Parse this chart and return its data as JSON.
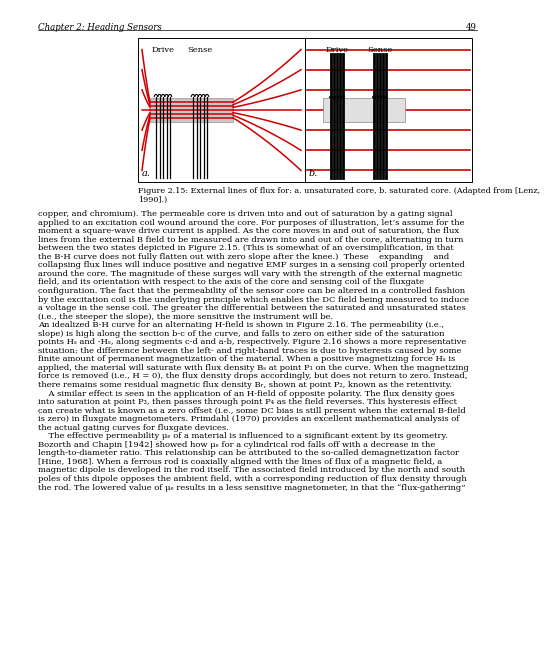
{
  "page_title": "Chapter 2: Heading Sensors",
  "page_number": "49",
  "fig_caption_line1": "Figure 2.15: External lines of flux for: a. unsaturated core, b. saturated core. (Adapted from [Lenz,",
  "fig_caption_line2": "1990].)",
  "label_a": "a.",
  "label_b": "b.",
  "drive_label": "Drive",
  "sense_label": "Sense",
  "body_lines": [
    "copper, and chromium). The permeable core is driven into and out of saturation by a gating signal",
    "applied to an excitation coil wound around the core. For purposes of illustration, let’s assume for the",
    "moment a square-wave drive current is applied. As the core moves in and out of saturation, the flux",
    "lines from the external B field to be measured are drawn into and out of the core, alternating in turn",
    "between the two states depicted in Figure 2.15. (This is somewhat of an oversimplification, in that",
    "the B-H curve does not fully flatten out with zero slope after the knee.)  These    expanding    and",
    "collapsing flux lines will induce positive and negative EMF surges in a sensing coil properly oriented",
    "around the core. The magnitude of these surges will vary with the strength of the external magnetic",
    "field, and its orientation with respect to the axis of the core and sensing coil of the fluxgate",
    "configuration. The fact that the permeability of the sensor core can be altered in a controlled fashion",
    "by the excitation coil is the underlying principle which enables the DC field being measured to induce",
    "a voltage in the sense coil. The greater the differential between the saturated and unsaturated states",
    "(i.e., the steeper the slope), the more sensitive the instrument will be.",
    "An idealized B-H curve for an alternating H-field is shown in Figure 2.16. The permeability (i.e.,",
    "slope) is high along the section b-c of the curve, and falls to zero on either side of the saturation",
    "points Hₛ and -Hₛ, along segments c-d and a-b, respectively. Figure 2.16 shows a more representative",
    "situation: the difference between the left- and right-hand traces is due to hysteresis caused by some",
    "finite amount of permanent magnetization of the material. When a positive magnetizing force Hₛ is",
    "applied, the material will saturate with flux density Bₛ at point P₁ on the curve. When the magnetizing",
    "force is removed (i.e., H = 0), the flux density drops accordingly, but does not return to zero. Instead,",
    "there remains some residual magnetic flux density Bᵣ, shown at point P₂, known as the retentivity.",
    "    A similar effect is seen in the application of an H-field of opposite polarity. The flux density goes",
    "into saturation at point P₃, then passes through point P₄ as the field reverses. This hysteresis effect",
    "can create what is known as a zero offset (i.e., some DC bias is still present when the external B-field",
    "is zero) in fluxgate magnetometers. Primdahl (1970) provides an excellent mathematical analysis of",
    "the actual gating curves for fluxgate devices.",
    "    The effective permeability μₑ of a material is influenced to a significant extent by its geometry.",
    "Bozorth and Chapin [1942] showed how μₑ for a cylindrical rod falls off with a decrease in the",
    "length-to-diameter ratio. This relationship can be attributed to the so-called demagnetization factor",
    "[Hine, 1968]. When a ferrous rod is coaxially aligned with the lines of flux of a magnetic field, a",
    "magnetic dipole is developed in the rod itself. The associated field introduced by the north and south",
    "poles of this dipole opposes the ambient field, with a corresponding reduction of flux density through",
    "the rod. The lowered value of μₑ results in a less sensitive magnetometer, in that the “flux-gathering”"
  ],
  "bg_color": "#ffffff",
  "text_color": "#000000",
  "red_color": "#cc0000"
}
